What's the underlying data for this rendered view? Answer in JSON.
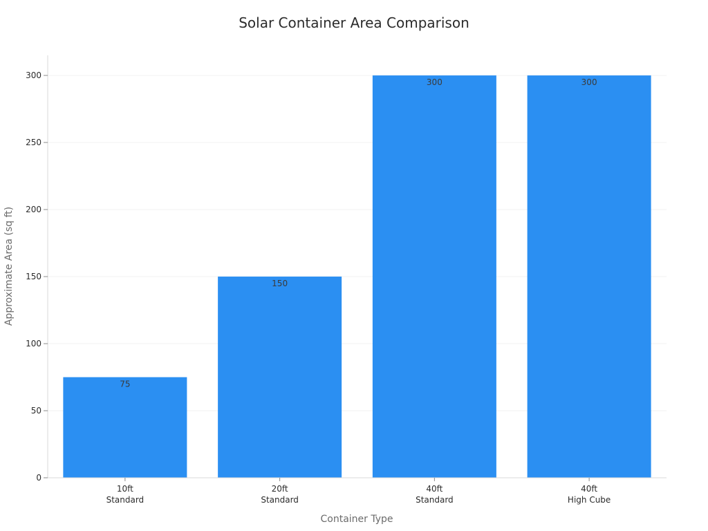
{
  "chart_data": {
    "type": "bar",
    "title": "Solar Container Area Comparison",
    "xlabel": "Container Type",
    "ylabel": "Approximate Area (sq ft)",
    "categories": [
      [
        "10ft",
        "Standard"
      ],
      [
        "20ft",
        "Standard"
      ],
      [
        "40ft",
        "Standard"
      ],
      [
        "40ft",
        "High Cube"
      ]
    ],
    "values": [
      75,
      150,
      300,
      300
    ],
    "data_labels": [
      "75",
      "150",
      "300",
      "300"
    ],
    "ylim": [
      0,
      315
    ],
    "yticks": [
      0,
      50,
      100,
      150,
      200,
      250,
      300
    ],
    "grid": true,
    "legend": "none",
    "bar_color": "#2b8ff2"
  }
}
